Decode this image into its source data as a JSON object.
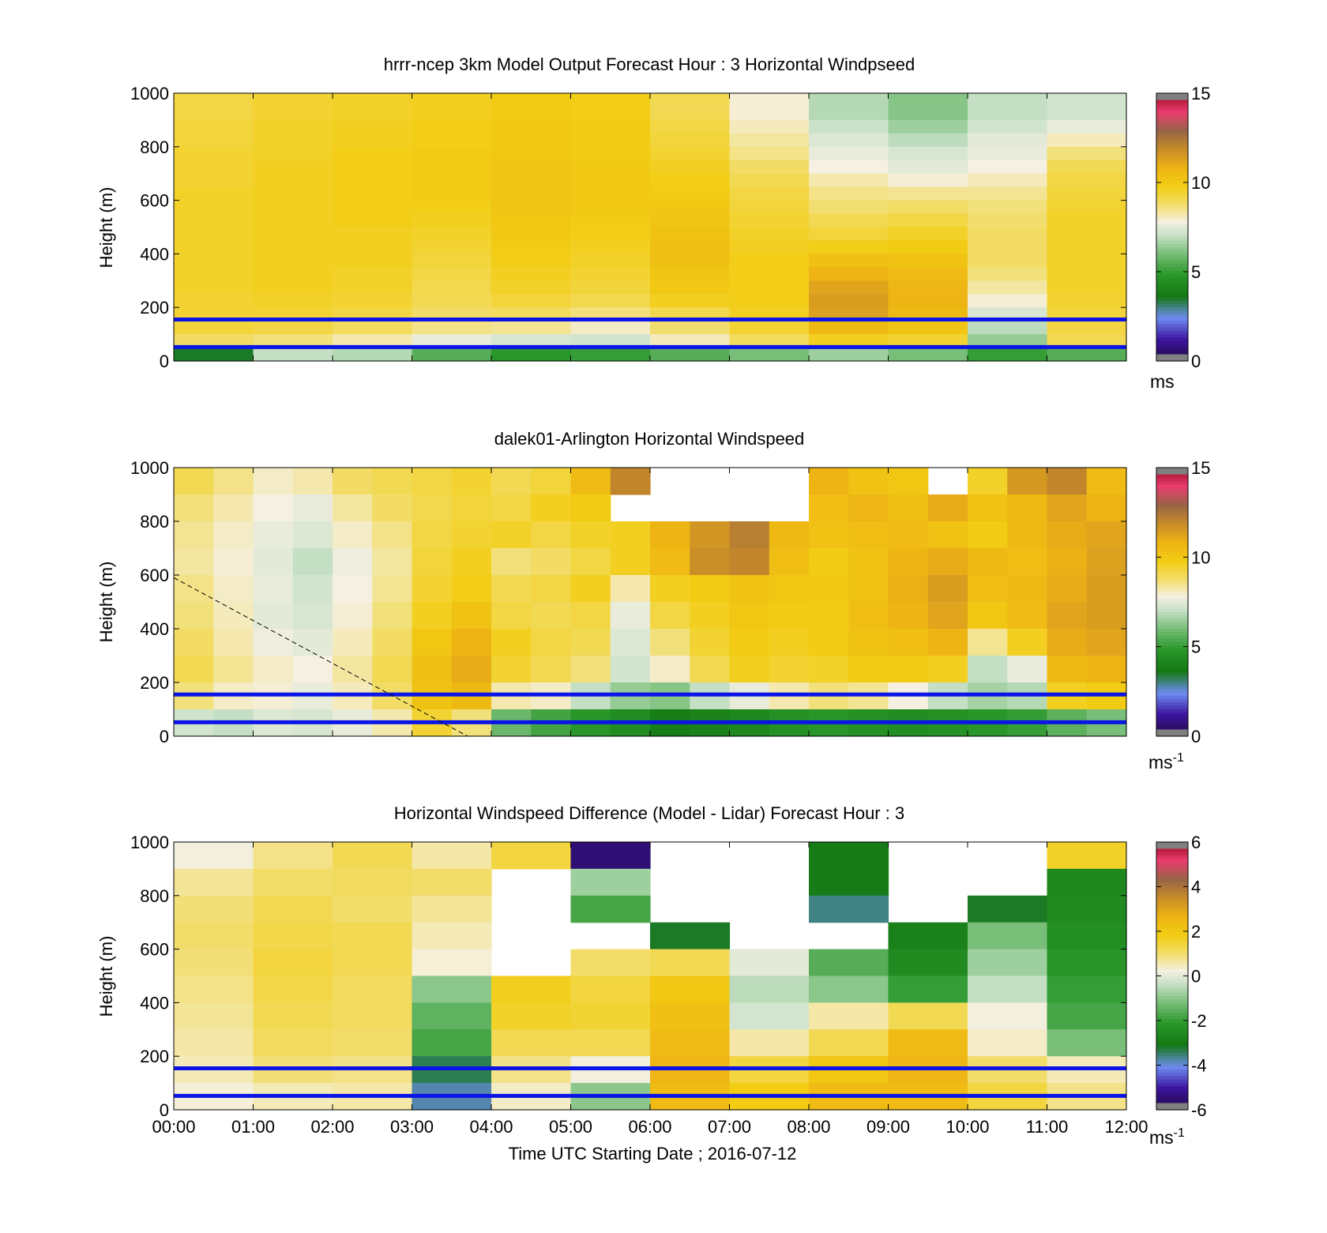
{
  "panels": [
    {
      "id": "model",
      "title": "hrrr-ncep 3km Model Output   Forecast Hour : 3 Horizontal Windpseed",
      "ylabel": "Height (m)",
      "colorbar_unit": "ms",
      "colorbar_unit_sup": "",
      "colorbar_ticks": [
        "15",
        "10",
        "5",
        "0"
      ]
    },
    {
      "id": "lidar",
      "title": "dalek01-Arlington  Horizontal Windspeed",
      "ylabel": "Height (m)",
      "colorbar_unit": "ms",
      "colorbar_unit_sup": "-1",
      "colorbar_ticks": [
        "15",
        "10",
        "5",
        "0"
      ]
    },
    {
      "id": "difference",
      "title": "Horizontal Windspeed Difference (Model - Lidar) Forecast Hour : 3",
      "ylabel": "Height (m)",
      "colorbar_unit": "ms",
      "colorbar_unit_sup": "-1",
      "colorbar_ticks": [
        "6",
        "4",
        "2",
        "0",
        "-2",
        "-4",
        "-6"
      ]
    }
  ],
  "y_ticks": [
    "1000",
    "800",
    "600",
    "400",
    "200",
    "0"
  ],
  "x_ticks": [
    "00:00",
    "01:00",
    "02:00",
    "03:00",
    "04:00",
    "05:00",
    "06:00",
    "07:00",
    "08:00",
    "09:00",
    "10:00",
    "11:00",
    "12:00"
  ],
  "xlabel": "Time UTC  Starting Date ; 2016-07-12",
  "chart_data": [
    {
      "type": "heatmap",
      "title": "hrrr-ncep 3km Model Output   Forecast Hour : 3 Horizontal Windpseed",
      "xlabel": "Time UTC  Starting Date ; 2016-07-12",
      "ylabel": "Height (m)",
      "xlim_hours": [
        0,
        12
      ],
      "ylim": [
        0,
        1000
      ],
      "colorbar_range": [
        0,
        15
      ],
      "colorbar_unit": "ms",
      "reference_lines_m": [
        155,
        52
      ],
      "x_hours": [
        0,
        1,
        2,
        3,
        4,
        5,
        6,
        7,
        8,
        9,
        10,
        11
      ],
      "y_heights_m": [
        975,
        925,
        875,
        825,
        775,
        725,
        675,
        625,
        575,
        525,
        475,
        425,
        375,
        325,
        275,
        225,
        175,
        125,
        75,
        25
      ],
      "values": [
        [
          9.2,
          9.4,
          9.5,
          9.6,
          9.8,
          9.7,
          9.0,
          7.9,
          6.8,
          6.2,
          7.0,
          7.2
        ],
        [
          9.2,
          9.4,
          9.5,
          9.6,
          9.8,
          9.7,
          9.0,
          7.9,
          6.8,
          6.2,
          7.0,
          7.2
        ],
        [
          9.3,
          9.5,
          9.6,
          9.7,
          9.9,
          9.8,
          9.2,
          8.1,
          7.1,
          6.5,
          7.2,
          7.6
        ],
        [
          9.3,
          9.5,
          9.6,
          9.7,
          9.9,
          9.8,
          9.3,
          8.3,
          7.4,
          6.9,
          7.5,
          8.1
        ],
        [
          9.4,
          9.5,
          9.7,
          9.8,
          10.0,
          9.8,
          9.4,
          8.5,
          7.6,
          7.3,
          7.6,
          8.6
        ],
        [
          9.4,
          9.6,
          9.7,
          9.8,
          10.1,
          9.9,
          9.6,
          8.8,
          7.8,
          7.5,
          7.8,
          9.0
        ],
        [
          9.4,
          9.6,
          9.7,
          9.8,
          10.1,
          9.9,
          9.7,
          9.0,
          8.2,
          7.9,
          8.1,
          9.2
        ],
        [
          9.5,
          9.6,
          9.7,
          9.8,
          10.1,
          9.9,
          9.8,
          9.2,
          8.5,
          8.4,
          8.4,
          9.3
        ],
        [
          9.5,
          9.6,
          9.7,
          9.7,
          10.1,
          9.9,
          10.0,
          9.3,
          8.7,
          8.8,
          8.6,
          9.4
        ],
        [
          9.5,
          9.6,
          9.7,
          9.6,
          10.0,
          9.8,
          10.1,
          9.4,
          9.0,
          9.2,
          8.7,
          9.5
        ],
        [
          9.5,
          9.6,
          9.6,
          9.5,
          9.9,
          9.7,
          10.2,
          9.5,
          9.3,
          9.5,
          8.8,
          9.5
        ],
        [
          9.5,
          9.6,
          9.6,
          9.4,
          9.8,
          9.6,
          10.3,
          9.6,
          9.7,
          9.8,
          8.8,
          9.5
        ],
        [
          9.5,
          9.6,
          9.6,
          9.3,
          9.7,
          9.5,
          10.3,
          9.7,
          10.3,
          10.2,
          8.8,
          9.5
        ],
        [
          9.5,
          9.6,
          9.5,
          9.2,
          9.6,
          9.4,
          10.1,
          9.7,
          10.8,
          10.5,
          8.6,
          9.5
        ],
        [
          9.5,
          9.6,
          9.5,
          9.1,
          9.5,
          9.3,
          9.9,
          9.7,
          11.2,
          10.7,
          8.3,
          9.5
        ],
        [
          9.4,
          9.5,
          9.4,
          9.0,
          9.3,
          9.1,
          9.6,
          9.7,
          11.4,
          10.8,
          7.9,
          9.4
        ],
        [
          9.4,
          9.4,
          9.2,
          8.8,
          8.9,
          8.6,
          9.1,
          9.6,
          11.3,
          10.6,
          7.3,
          9.3
        ],
        [
          9.3,
          9.2,
          8.9,
          8.5,
          8.4,
          8.0,
          8.7,
          9.4,
          10.6,
          10.1,
          6.9,
          9.2
        ],
        [
          8.8,
          8.6,
          8.2,
          7.6,
          7.3,
          7.2,
          8.1,
          8.9,
          9.6,
          9.4,
          6.4,
          9.0
        ],
        [
          3.5,
          7.0,
          6.8,
          5.5,
          4.8,
          5.0,
          5.5,
          6.0,
          6.5,
          6.0,
          5.0,
          5.5
        ]
      ]
    },
    {
      "type": "heatmap",
      "title": "dalek01-Arlington  Horizontal Windspeed",
      "xlabel": "Time UTC  Starting Date ; 2016-07-12",
      "ylabel": "Height (m)",
      "xlim_hours": [
        0,
        12
      ],
      "ylim": [
        0,
        1000
      ],
      "colorbar_range": [
        0,
        15
      ],
      "colorbar_unit": "ms-1",
      "reference_lines_m": [
        155,
        52
      ],
      "overlay_dashed_line": {
        "from": [
          0,
          590
        ],
        "to": [
          3.7,
          0
        ]
      },
      "x_hours": [
        0,
        0.5,
        1,
        1.5,
        2,
        2.5,
        3,
        3.5,
        4,
        4.5,
        5,
        5.5,
        6,
        6.5,
        7,
        7.5,
        8,
        8.5,
        9,
        9.5,
        10,
        10.5,
        11,
        11.5
      ],
      "y_heights_m": [
        950,
        850,
        750,
        650,
        550,
        450,
        350,
        250,
        150,
        50
      ],
      "values": [
        [
          9.0,
          8.5,
          8.0,
          8.2,
          8.8,
          9.0,
          9.2,
          9.4,
          9.0,
          9.3,
          10.5,
          12.0,
          null,
          null,
          null,
          null,
          10.8,
          10.2,
          10.0,
          null,
          9.5,
          11.5,
          12.0,
          10.5
        ],
        [
          8.6,
          8.2,
          7.8,
          7.6,
          8.3,
          8.8,
          9.1,
          9.3,
          9.2,
          9.6,
          9.8,
          null,
          null,
          null,
          null,
          null,
          10.4,
          10.7,
          10.3,
          11.0,
          10.2,
          10.6,
          11.2,
          10.8
        ],
        [
          8.4,
          8.0,
          7.6,
          7.4,
          8.0,
          8.5,
          9.2,
          9.4,
          9.5,
          9.2,
          9.5,
          9.6,
          10.8,
          11.6,
          12.2,
          10.6,
          10.2,
          10.4,
          10.5,
          10.2,
          9.8,
          10.6,
          11.0,
          11.2
        ],
        [
          8.3,
          7.9,
          7.5,
          7.0,
          7.7,
          8.3,
          9.3,
          9.6,
          8.6,
          8.8,
          9.2,
          9.6,
          10.5,
          11.8,
          12.0,
          10.4,
          9.8,
          10.2,
          10.8,
          11.0,
          10.6,
          10.4,
          10.9,
          11.3
        ],
        [
          8.5,
          8.0,
          7.6,
          7.2,
          7.8,
          8.4,
          9.4,
          9.7,
          9.0,
          9.2,
          9.6,
          8.2,
          9.6,
          9.8,
          10.2,
          10.0,
          9.9,
          10.2,
          10.9,
          11.4,
          10.4,
          10.6,
          11.0,
          11.4
        ],
        [
          8.6,
          8.1,
          7.5,
          7.3,
          7.9,
          8.6,
          9.6,
          10.2,
          9.2,
          9.0,
          9.2,
          7.6,
          9.2,
          9.6,
          10.0,
          9.8,
          9.8,
          10.4,
          10.8,
          11.2,
          10.0,
          10.5,
          11.2,
          11.4
        ],
        [
          8.8,
          8.2,
          7.7,
          7.5,
          8.1,
          8.8,
          10.0,
          10.8,
          9.6,
          9.2,
          9.0,
          7.4,
          8.6,
          9.4,
          9.8,
          9.6,
          9.8,
          10.2,
          10.4,
          10.8,
          8.4,
          9.6,
          11.0,
          11.2
        ],
        [
          9.0,
          8.4,
          8.0,
          7.8,
          8.3,
          9.0,
          10.3,
          11.0,
          9.4,
          9.0,
          8.6,
          7.2,
          8.0,
          9.0,
          9.6,
          9.4,
          9.5,
          9.8,
          9.8,
          9.6,
          7.0,
          7.6,
          10.6,
          10.8
        ],
        [
          8.6,
          8.0,
          7.9,
          7.6,
          8.1,
          8.8,
          10.2,
          10.6,
          8.2,
          8.0,
          7.0,
          6.4,
          6.2,
          7.0,
          7.6,
          8.2,
          8.6,
          8.4,
          7.8,
          7.0,
          6.6,
          6.8,
          9.6,
          9.8
        ],
        [
          7.2,
          7.0,
          7.4,
          7.3,
          7.6,
          8.2,
          9.4,
          8.6,
          5.8,
          5.2,
          4.8,
          4.4,
          3.8,
          4.0,
          4.2,
          4.6,
          4.8,
          4.6,
          4.4,
          4.6,
          4.8,
          5.0,
          5.6,
          6.0
        ]
      ]
    },
    {
      "type": "heatmap",
      "title": "Horizontal Windspeed Difference (Model - Lidar) Forecast Hour : 3",
      "xlabel": "Time UTC  Starting Date ; 2016-07-12",
      "ylabel": "Height (m)",
      "xlim_hours": [
        0,
        12
      ],
      "ylim": [
        0,
        1000
      ],
      "colorbar_range": [
        -6,
        6
      ],
      "colorbar_unit": "ms-1",
      "reference_lines_m": [
        155,
        52
      ],
      "x_hours": [
        0,
        1,
        2,
        3,
        4,
        5,
        6,
        7,
        8,
        9,
        10,
        11
      ],
      "y_heights_m": [
        950,
        850,
        750,
        650,
        550,
        450,
        350,
        250,
        150,
        50
      ],
      "values": [
        [
          0.2,
          0.8,
          1.2,
          0.6,
          1.4,
          -5.5,
          null,
          null,
          -3.0,
          null,
          null,
          1.6
        ],
        [
          0.7,
          1.0,
          1.1,
          1.0,
          null,
          -0.8,
          null,
          null,
          -3.0,
          null,
          null,
          -2.6
        ],
        [
          0.9,
          1.2,
          1.0,
          0.7,
          null,
          -1.8,
          null,
          null,
          -3.6,
          null,
          -3.2,
          -2.5
        ],
        [
          1.0,
          1.3,
          1.2,
          0.5,
          null,
          null,
          -3.2,
          null,
          null,
          -2.8,
          -1.2,
          -2.4
        ],
        [
          0.9,
          1.4,
          1.2,
          0.3,
          null,
          1.0,
          1.2,
          0.0,
          -1.6,
          -2.5,
          -0.8,
          -2.2
        ],
        [
          0.8,
          1.3,
          1.1,
          -1.0,
          1.7,
          1.4,
          2.0,
          -0.5,
          -1.0,
          -2.0,
          -0.4,
          -2.0
        ],
        [
          0.7,
          1.2,
          1.1,
          -1.5,
          1.6,
          1.5,
          2.2,
          -0.2,
          0.6,
          1.2,
          0.2,
          -1.8
        ],
        [
          0.6,
          1.1,
          1.0,
          -1.8,
          1.2,
          1.2,
          2.4,
          0.6,
          1.2,
          2.4,
          0.4,
          -1.2
        ],
        [
          0.5,
          0.9,
          0.8,
          -3.4,
          0.8,
          0.2,
          2.6,
          1.4,
          2.0,
          2.6,
          1.0,
          0.5
        ],
        [
          0.3,
          0.5,
          0.6,
          -3.8,
          0.4,
          -1.0,
          2.4,
          1.8,
          2.4,
          2.4,
          1.4,
          0.8
        ]
      ]
    }
  ]
}
